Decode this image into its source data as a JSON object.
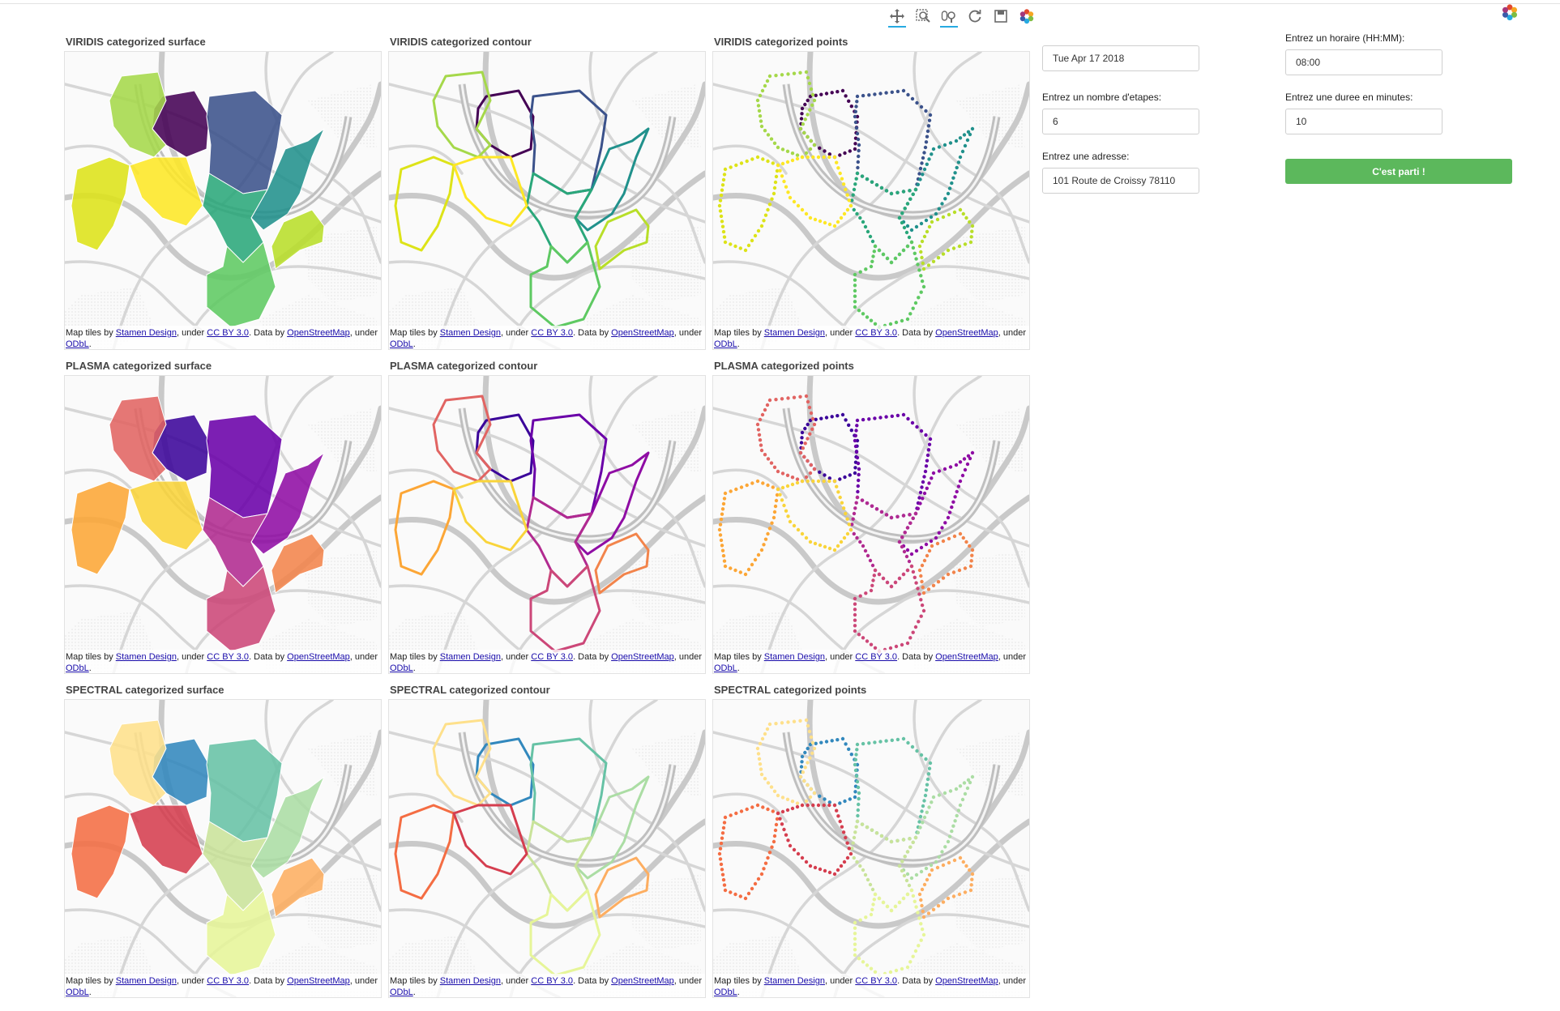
{
  "toolbar": {
    "tools": [
      "pan-icon",
      "box-zoom-icon",
      "wheel-zoom-icon",
      "reset-icon",
      "save-icon",
      "bokeh-logo-icon"
    ]
  },
  "attribution": {
    "prefix": "Map tiles by ",
    "stamen": "Stamen Design",
    "under1": ", under ",
    "ccby": "CC BY 3.0",
    "data_by": ". Data by ",
    "osm": "OpenStreetMap",
    "under2": ", under ",
    "odbl": "ODbL",
    "period": "."
  },
  "plots": [
    {
      "title": "VIRIDIS categorized surface",
      "palette": "viridis",
      "kind": "surface"
    },
    {
      "title": "VIRIDIS categorized contour",
      "palette": "viridis",
      "kind": "contour"
    },
    {
      "title": "VIRIDIS categorized points",
      "palette": "viridis",
      "kind": "points"
    },
    {
      "title": "PLASMA categorized surface",
      "palette": "plasma",
      "kind": "surface"
    },
    {
      "title": "PLASMA categorized contour",
      "palette": "plasma",
      "kind": "contour"
    },
    {
      "title": "PLASMA categorized points",
      "palette": "plasma",
      "kind": "points"
    },
    {
      "title": "SPECTRAL categorized surface",
      "palette": "spectral",
      "kind": "surface"
    },
    {
      "title": "SPECTRAL categorized contour",
      "palette": "spectral",
      "kind": "contour"
    },
    {
      "title": "SPECTRAL categorized points",
      "palette": "spectral",
      "kind": "points"
    }
  ],
  "palettes": {
    "viridis": [
      "#440154",
      "#3b528b",
      "#21918c",
      "#2aa77a",
      "#5ec962",
      "#a5d84a",
      "#b8de29",
      "#dde318",
      "#fde725"
    ],
    "plasma": [
      "#3b049a",
      "#6a00a8",
      "#8f0da4",
      "#b12a90",
      "#cc4778",
      "#e16462",
      "#f2844b",
      "#fca636",
      "#f9d43a"
    ],
    "spectral": [
      "#3288bd",
      "#66c2a5",
      "#abdda4",
      "#c9e39a",
      "#e6f598",
      "#fee08b",
      "#fdae61",
      "#f46d43",
      "#d53e4f"
    ]
  },
  "form": {
    "date": {
      "value": "Tue Apr 17 2018"
    },
    "steps": {
      "label": "Entrez un nombre d'etapes:",
      "value": "6"
    },
    "address": {
      "label": "Entrez une adresse:",
      "value": "101 Route de Croissy 78110"
    },
    "time": {
      "label": "Entrez un horaire (HH:MM):",
      "value": "08:00"
    },
    "duration": {
      "label": "Entrez une duree en minutes:",
      "value": "10"
    },
    "submit_label": "C'est parti !"
  }
}
